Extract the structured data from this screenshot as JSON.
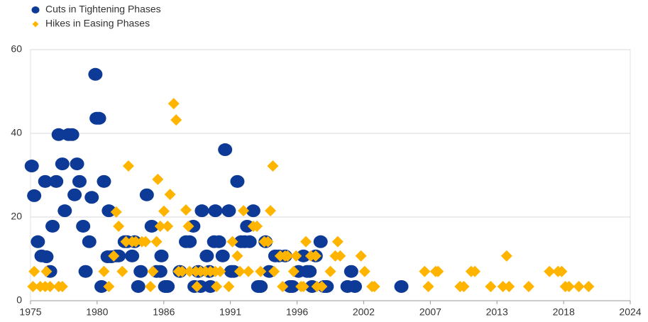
{
  "chart_data": {
    "type": "scatter",
    "xlim": [
      1975,
      2024
    ],
    "xticks": [
      {
        "value": 1975,
        "label": "1975"
      },
      {
        "value": 1980.44,
        "label": "1980"
      },
      {
        "value": 1985.89,
        "label": "1986"
      },
      {
        "value": 1991.33,
        "label": "1991"
      },
      {
        "value": 1996.78,
        "label": "1996"
      },
      {
        "value": 2002.22,
        "label": "2002"
      },
      {
        "value": 2007.67,
        "label": "2007"
      },
      {
        "value": 2013.11,
        "label": "2013"
      },
      {
        "value": 2018.56,
        "label": "2018"
      },
      {
        "value": 2024,
        "label": "2024"
      }
    ],
    "ylim": [
      0,
      60
    ],
    "yticks": [
      0,
      20,
      40,
      60
    ],
    "grid": true,
    "legend": "top-left",
    "series": [
      {
        "name": "Cuts in Tightening Phases",
        "color": "#0d3a96",
        "marker": "circle",
        "x": [
          1975.1,
          1975.3,
          1975.6,
          1975.9,
          1976.2,
          1976.3,
          1976.6,
          1976.8,
          1977.1,
          1977.3,
          1977.6,
          1977.8,
          1978.1,
          1978.4,
          1978.6,
          1978.8,
          1979.0,
          1979.3,
          1979.5,
          1979.8,
          1980.0,
          1980.3,
          1980.4,
          1980.6,
          1980.8,
          1981.0,
          1981.4,
          1981.3,
          1981.6,
          1982.0,
          1982.2,
          1982.7,
          1982.9,
          1983.3,
          1983.5,
          1984.0,
          1983.8,
          1984.5,
          1984.9,
          1985.3,
          1985.6,
          1985.7,
          1986.0,
          1986.2,
          1987.2,
          1987.7,
          1988.0,
          1988.3,
          1988.4,
          1988.7,
          1988.9,
          1989.0,
          1989.4,
          1989.6,
          1989.7,
          1990.0,
          1990.1,
          1990.4,
          1990.7,
          1990.9,
          1991.2,
          1991.4,
          1991.6,
          1991.9,
          1992.2,
          1992.5,
          1992.7,
          1992.9,
          1993.2,
          1993.6,
          1993.8,
          1994.2,
          1994.5,
          1995.0,
          1995.3,
          1995.8,
          1996.2,
          1996.4,
          1996.9,
          1997.3,
          1997.6,
          1997.8,
          1998.0,
          1998.3,
          1998.7,
          1999.0,
          1999.2,
          2000.9,
          2001.2,
          2001.5,
          2005.3
        ],
        "values": [
          32.2,
          25.1,
          14.1,
          10.7,
          28.5,
          10.5,
          7.0,
          17.8,
          28.5,
          39.7,
          32.7,
          21.5,
          39.7,
          39.7,
          25.3,
          32.7,
          28.5,
          17.8,
          7.0,
          14.1,
          24.7,
          54.1,
          43.6,
          43.6,
          3.4,
          28.5,
          21.5,
          10.5,
          10.5,
          10.7,
          10.7,
          14.1,
          14.1,
          10.7,
          14.1,
          7.0,
          3.4,
          25.3,
          17.8,
          7.0,
          7.0,
          10.7,
          3.4,
          3.4,
          7.0,
          14.1,
          14.1,
          17.8,
          3.4,
          7.0,
          3.4,
          21.5,
          10.7,
          7.0,
          3.4,
          14.1,
          21.5,
          14.1,
          10.7,
          36.1,
          21.5,
          7.0,
          7.0,
          28.5,
          14.1,
          14.1,
          17.8,
          14.1,
          21.5,
          3.4,
          3.4,
          14.1,
          7.0,
          10.7,
          10.7,
          10.7,
          3.4,
          3.4,
          7.0,
          10.7,
          7.0,
          7.0,
          3.4,
          10.7,
          14.1,
          3.4,
          3.4,
          3.4,
          7.0,
          3.4,
          3.4
        ]
      },
      {
        "name": "Hikes in Easing Phases",
        "color": "#ffb400",
        "marker": "diamond",
        "x": [
          1975.2,
          1975.3,
          1975.8,
          1976.2,
          1976.3,
          1976.6,
          1977.3,
          1977.6,
          1981.4,
          1981.0,
          1981.8,
          1982.0,
          1982.2,
          1982.5,
          1983.0,
          1982.8,
          1983.3,
          1983.6,
          1984.1,
          1984.4,
          1984.8,
          1985.0,
          1985.3,
          1985.4,
          1985.6,
          1985.9,
          1986.2,
          1986.4,
          1986.7,
          1986.9,
          1987.1,
          1987.4,
          1987.7,
          1987.9,
          1988.0,
          1988.5,
          1988.6,
          1988.9,
          1989.3,
          1989.7,
          1990.1,
          1990.2,
          1990.5,
          1991.2,
          1991.5,
          1991.9,
          1992.1,
          1992.4,
          1992.8,
          1993.2,
          1993.5,
          1993.8,
          1994.1,
          1994.4,
          1994.6,
          1994.8,
          1994.9,
          1995.4,
          1995.6,
          1995.8,
          1996.0,
          1996.5,
          1996.7,
          1997.1,
          1997.3,
          1997.5,
          1997.9,
          1998.3,
          1998.4,
          1998.8,
          1999.5,
          1999.9,
          2000.1,
          2000.3,
          2002.0,
          2002.3,
          2002.9,
          2003.1,
          2007.2,
          2007.5,
          2008.1,
          2008.3,
          2010.1,
          2010.4,
          2011.0,
          2011.3,
          2012.6,
          2013.6,
          2013.9,
          2014.1,
          2015.7,
          2017.4,
          2018.1,
          2018.4,
          2018.7,
          2019.0,
          2019.8,
          2020.6
        ],
        "values": [
          3.4,
          7.0,
          3.4,
          3.4,
          7.0,
          3.4,
          3.4,
          3.4,
          3.4,
          7.0,
          10.7,
          21.2,
          17.8,
          7.0,
          32.2,
          14.1,
          14.1,
          14.1,
          14.1,
          14.1,
          3.4,
          7.0,
          14.1,
          29.0,
          17.8,
          21.4,
          17.8,
          25.4,
          47.1,
          43.2,
          7.0,
          7.0,
          21.7,
          17.8,
          7.0,
          7.0,
          3.4,
          7.0,
          7.0,
          7.0,
          7.0,
          3.4,
          7.0,
          3.4,
          14.1,
          10.7,
          7.0,
          21.5,
          7.0,
          17.8,
          17.8,
          7.0,
          14.1,
          14.1,
          21.5,
          32.2,
          7.0,
          10.7,
          3.4,
          10.7,
          10.7,
          7.0,
          10.7,
          3.4,
          3.4,
          14.1,
          10.7,
          10.7,
          3.4,
          3.4,
          7.0,
          10.7,
          14.1,
          10.7,
          10.7,
          7.0,
          3.4,
          3.4,
          7.0,
          3.4,
          7.0,
          7.0,
          3.4,
          3.4,
          7.0,
          7.0,
          3.4,
          3.4,
          10.7,
          3.4,
          3.4,
          7.0,
          7.0,
          7.0,
          3.4,
          3.4,
          3.4,
          3.4
        ]
      }
    ]
  }
}
